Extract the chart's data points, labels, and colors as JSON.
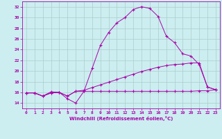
{
  "xlabel": "Windchill (Refroidissement éolien,°C)",
  "xlim": [
    -0.5,
    23.5
  ],
  "ylim": [
    13,
    33
  ],
  "yticks": [
    14,
    16,
    18,
    20,
    22,
    24,
    26,
    28,
    30,
    32
  ],
  "xticks": [
    0,
    1,
    2,
    3,
    4,
    5,
    6,
    7,
    8,
    9,
    10,
    11,
    12,
    13,
    14,
    15,
    16,
    17,
    18,
    19,
    20,
    21,
    22,
    23
  ],
  "bg_color": "#cceef0",
  "grid_color": "#aacccc",
  "line_color": "#aa00aa",
  "line1_x": [
    0,
    1,
    2,
    3,
    4,
    5,
    6,
    7,
    8,
    9,
    10,
    11,
    12,
    13,
    14,
    15,
    16,
    17,
    18,
    19,
    20,
    21,
    22,
    23
  ],
  "line1_y": [
    15.9,
    15.9,
    15.3,
    16.1,
    16.0,
    14.8,
    14.0,
    16.2,
    20.5,
    24.8,
    27.2,
    29.0,
    30.0,
    31.5,
    32.0,
    31.7,
    30.2,
    26.5,
    25.3,
    23.2,
    22.8,
    21.2,
    17.0,
    16.5
  ],
  "line2_x": [
    0,
    1,
    2,
    3,
    4,
    5,
    6,
    7,
    8,
    9,
    10,
    11,
    12,
    13,
    14,
    15,
    16,
    17,
    18,
    19,
    20,
    21,
    22,
    23
  ],
  "line2_y": [
    15.9,
    15.9,
    15.3,
    15.9,
    16.0,
    15.3,
    16.2,
    16.2,
    16.2,
    16.2,
    16.2,
    16.2,
    16.2,
    16.2,
    16.2,
    16.2,
    16.2,
    16.2,
    16.2,
    16.2,
    16.2,
    16.3,
    16.3,
    16.5
  ],
  "line3_x": [
    0,
    1,
    2,
    3,
    4,
    5,
    6,
    7,
    8,
    9,
    10,
    11,
    12,
    13,
    14,
    15,
    16,
    17,
    18,
    19,
    20,
    21,
    22,
    23
  ],
  "line3_y": [
    15.9,
    15.9,
    15.3,
    15.9,
    16.0,
    15.3,
    16.2,
    16.4,
    16.9,
    17.4,
    17.9,
    18.4,
    18.9,
    19.4,
    19.9,
    20.3,
    20.7,
    21.0,
    21.2,
    21.3,
    21.5,
    21.5,
    17.0,
    16.5
  ]
}
